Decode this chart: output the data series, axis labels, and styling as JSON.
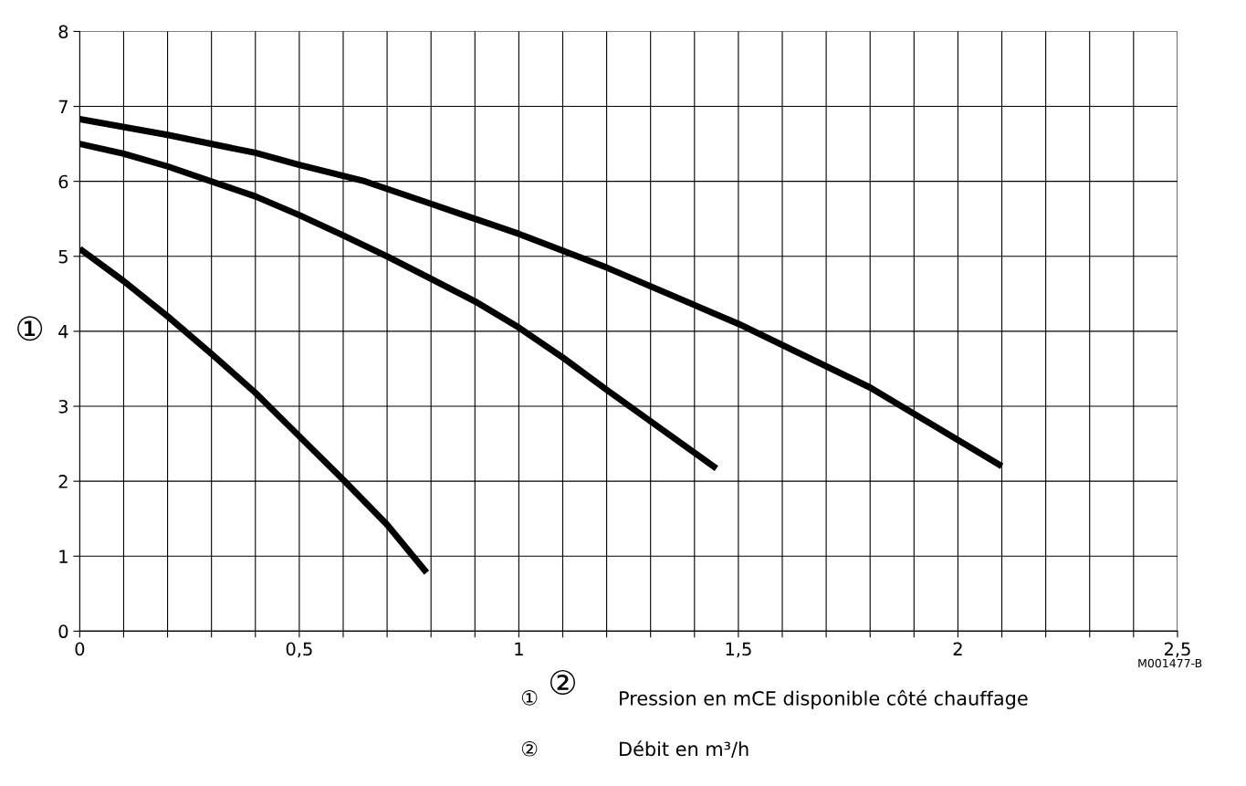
{
  "chart_data": {
    "type": "line",
    "xlabel": "②",
    "ylabel": "①",
    "xlim": [
      0,
      2.5
    ],
    "ylim": [
      0,
      8
    ],
    "xticks": [
      0,
      {
        "value": 0.1,
        "label": null
      },
      {
        "value": 0.2,
        "label": null
      },
      {
        "value": 0.3,
        "label": null
      },
      {
        "value": 0.4,
        "label": null
      },
      {
        "value": 0.5,
        "label": "0,5"
      },
      {
        "value": 0.6,
        "label": null
      },
      {
        "value": 0.7,
        "label": null
      },
      {
        "value": 0.8,
        "label": null
      },
      {
        "value": 0.9,
        "label": null
      },
      1,
      {
        "value": 1.1,
        "label": null
      },
      {
        "value": 1.2,
        "label": null
      },
      {
        "value": 1.3,
        "label": null
      },
      {
        "value": 1.4,
        "label": null
      },
      {
        "value": 1.5,
        "label": "1,5"
      },
      {
        "value": 1.6,
        "label": null
      },
      {
        "value": 1.7,
        "label": null
      },
      {
        "value": 1.8,
        "label": null
      },
      {
        "value": 1.9,
        "label": null
      },
      2,
      {
        "value": 2.1,
        "label": null
      },
      {
        "value": 2.2,
        "label": null
      },
      {
        "value": 2.3,
        "label": null
      },
      {
        "value": 2.4,
        "label": null
      },
      {
        "value": 2.5,
        "label": "2,5"
      }
    ],
    "yticks": [
      0,
      1,
      2,
      3,
      4,
      5,
      6,
      7,
      8
    ],
    "grid": true,
    "marker": "none",
    "line_style": "solid",
    "series": [
      {
        "color": "#000000",
        "x": [
          0,
          0.1,
          0.2,
          0.3,
          0.4,
          0.5,
          0.6,
          0.7,
          0.79
        ],
        "values": [
          5.1,
          4.67,
          4.2,
          3.7,
          3.18,
          2.6,
          2.02,
          1.42,
          0.78
        ]
      },
      {
        "color": "#000000",
        "x": [
          0,
          0.1,
          0.2,
          0.3,
          0.4,
          0.5,
          0.6,
          0.7,
          0.8,
          0.9,
          1.0,
          1.1,
          1.2,
          1.3,
          1.45
        ],
        "values": [
          6.5,
          6.37,
          6.2,
          6.0,
          5.8,
          5.55,
          5.28,
          5.0,
          4.7,
          4.4,
          4.05,
          3.65,
          3.22,
          2.8,
          2.17
        ]
      },
      {
        "color": "#000000",
        "x": [
          0,
          0.2,
          0.4,
          0.5,
          0.65,
          0.8,
          1.0,
          1.2,
          1.5,
          1.8,
          2.0,
          2.1
        ],
        "values": [
          6.83,
          6.62,
          6.38,
          6.22,
          6.0,
          5.7,
          5.3,
          4.85,
          4.1,
          3.25,
          2.55,
          2.2
        ]
      }
    ],
    "annotations": [
      "M001477-B",
      "①",
      "Pression en mCE disponible côté chauffage",
      "②",
      "Débit en m³/h"
    ]
  }
}
